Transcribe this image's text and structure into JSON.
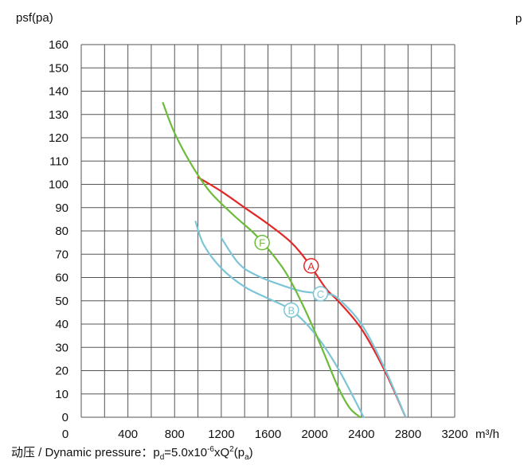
{
  "chart_data": {
    "type": "line",
    "ylabel": "psf(pa)",
    "xlabel": "m³/h",
    "ylim": [
      0,
      160
    ],
    "xlim": [
      0,
      3200
    ],
    "yticks": [
      "0",
      "10",
      "20",
      "30",
      "40",
      "50",
      "60",
      "70",
      "80",
      "90",
      "100",
      "110",
      "120",
      "130",
      "140",
      "150",
      "160"
    ],
    "xticks": [
      {
        "v": 400,
        "label": "400"
      },
      {
        "v": 800,
        "label": "800"
      },
      {
        "v": 1200,
        "label": "1200"
      },
      {
        "v": 1600,
        "label": "1600"
      },
      {
        "v": 2000,
        "label": "2000"
      },
      {
        "v": 2400,
        "label": "2400"
      },
      {
        "v": 2800,
        "label": "2800"
      },
      {
        "v": 3200,
        "label": "3200"
      }
    ],
    "grid": true,
    "series": [
      {
        "name": "A",
        "color": "#e32626",
        "label_at": [
          1970,
          65
        ],
        "points": [
          [
            1000,
            103
          ],
          [
            1200,
            97
          ],
          [
            1400,
            90
          ],
          [
            1600,
            83
          ],
          [
            1800,
            75
          ],
          [
            1950,
            66
          ],
          [
            2100,
            55
          ],
          [
            2200,
            50
          ],
          [
            2400,
            38
          ],
          [
            2600,
            20
          ],
          [
            2780,
            0
          ]
        ]
      },
      {
        "name": "C",
        "color": "#7cc4d6",
        "label_at": [
          2050,
          53
        ],
        "points": [
          [
            1200,
            77
          ],
          [
            1350,
            66
          ],
          [
            1500,
            61
          ],
          [
            1700,
            57
          ],
          [
            1900,
            54
          ],
          [
            2100,
            53
          ],
          [
            2200,
            51
          ],
          [
            2400,
            40
          ],
          [
            2600,
            21
          ],
          [
            2780,
            0
          ]
        ]
      },
      {
        "name": "B",
        "color": "#7cc4d6",
        "label_at": [
          1800,
          46
        ],
        "points": [
          [
            980,
            84
          ],
          [
            1050,
            74
          ],
          [
            1200,
            64
          ],
          [
            1400,
            56
          ],
          [
            1600,
            51
          ],
          [
            1800,
            46
          ],
          [
            2000,
            36
          ],
          [
            2200,
            21
          ],
          [
            2420,
            0
          ]
        ]
      },
      {
        "name": "F",
        "color": "#6dbb3a",
        "label_at": [
          1550,
          75
        ],
        "points": [
          [
            700,
            135
          ],
          [
            800,
            122
          ],
          [
            950,
            108
          ],
          [
            1100,
            97
          ],
          [
            1300,
            87
          ],
          [
            1500,
            78
          ],
          [
            1700,
            66
          ],
          [
            1800,
            58
          ],
          [
            1900,
            48
          ],
          [
            2000,
            37
          ],
          [
            2100,
            25
          ],
          [
            2200,
            13
          ],
          [
            2300,
            4
          ],
          [
            2390,
            0
          ]
        ]
      }
    ]
  },
  "caption": {
    "prefix": "动压 / Dynamic pressure：",
    "p": "p",
    "p_sub": "d",
    "eq": "=5.0x10",
    "exp": "-6",
    "xq": "xQ",
    "q_exp": "2",
    "open": "(p",
    "pa_sub": "a",
    "close": ")"
  },
  "corner_label": "p"
}
